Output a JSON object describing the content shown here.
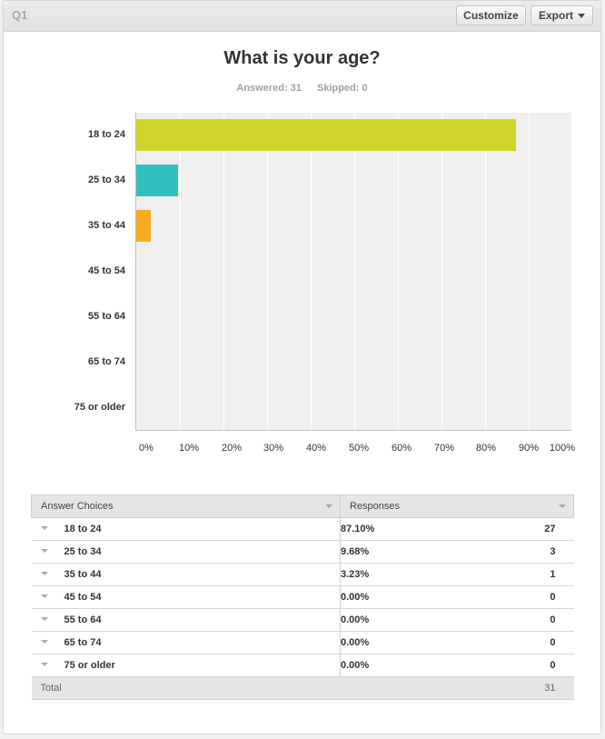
{
  "header": {
    "question_label": "Q1",
    "customize_label": "Customize",
    "export_label": "Export"
  },
  "title": "What is your age?",
  "stats": {
    "answered": "Answered: 31",
    "skipped": "Skipped: 0"
  },
  "colors": {
    "bar_18_24": "#d0d42a",
    "bar_25_34": "#32bfbf",
    "bar_35_44": "#f9ac1f"
  },
  "chart_data": {
    "type": "bar",
    "orientation": "horizontal",
    "categories": [
      "18 to 24",
      "25 to 34",
      "35 to 44",
      "45 to 54",
      "55 to 64",
      "65 to 74",
      "75 or older"
    ],
    "values": [
      87.1,
      9.68,
      3.23,
      0,
      0,
      0,
      0
    ],
    "colors": [
      "#d0d42a",
      "#32bfbf",
      "#f9ac1f",
      "#d0d42a",
      "#d0d42a",
      "#d0d42a",
      "#d0d42a"
    ],
    "ticks": [
      "0%",
      "10%",
      "20%",
      "30%",
      "40%",
      "50%",
      "60%",
      "70%",
      "80%",
      "90%",
      "100%"
    ],
    "xlim": [
      0,
      100
    ],
    "grid": true
  },
  "table": {
    "headers": [
      "Answer Choices",
      "Responses"
    ],
    "rows": [
      {
        "choice": "18 to 24",
        "percent": "87.10%",
        "count": "27"
      },
      {
        "choice": "25 to 34",
        "percent": "9.68%",
        "count": "3"
      },
      {
        "choice": "35 to 44",
        "percent": "3.23%",
        "count": "1"
      },
      {
        "choice": "45 to 54",
        "percent": "0.00%",
        "count": "0"
      },
      {
        "choice": "55 to 64",
        "percent": "0.00%",
        "count": "0"
      },
      {
        "choice": "65 to 74",
        "percent": "0.00%",
        "count": "0"
      },
      {
        "choice": "75 or older",
        "percent": "0.00%",
        "count": "0"
      }
    ],
    "total_label": "Total",
    "total_count": "31"
  }
}
